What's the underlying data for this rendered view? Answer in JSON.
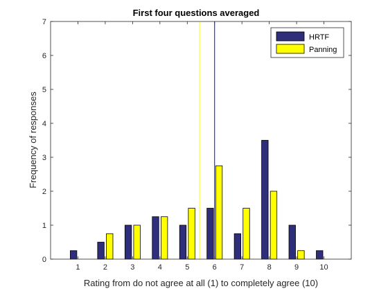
{
  "chart_data": {
    "type": "bar",
    "title": "First four questions averaged",
    "xlabel": "Rating from do not agree at all (1) to completely agree (10)",
    "ylabel": "Frequency of responses",
    "categories": [
      "1",
      "2",
      "3",
      "4",
      "5",
      "6",
      "7",
      "8",
      "9",
      "10"
    ],
    "x": [
      1,
      2,
      3,
      4,
      5,
      6,
      7,
      8,
      9,
      10
    ],
    "xlim": [
      0,
      11
    ],
    "ylim": [
      0,
      7
    ],
    "yticks": [
      0,
      1,
      2,
      3,
      4,
      5,
      6,
      7
    ],
    "grid": false,
    "legend_position": "top-right",
    "series": [
      {
        "name": "HRTF",
        "color": "#2e2e7a",
        "values": [
          0.25,
          0.5,
          1,
          1.25,
          1,
          1.5,
          0.75,
          3.5,
          1,
          0.25
        ]
      },
      {
        "name": "Panning",
        "color": "#ffff00",
        "values": [
          0,
          0.75,
          1,
          1.25,
          1.5,
          2.75,
          1.5,
          2,
          0.25,
          0
        ]
      }
    ],
    "mean_lines": [
      {
        "series": "HRTF",
        "x": 6.0,
        "color": "#0000ff"
      },
      {
        "series": "Panning",
        "x": 5.45,
        "color": "#ffff00"
      }
    ]
  }
}
